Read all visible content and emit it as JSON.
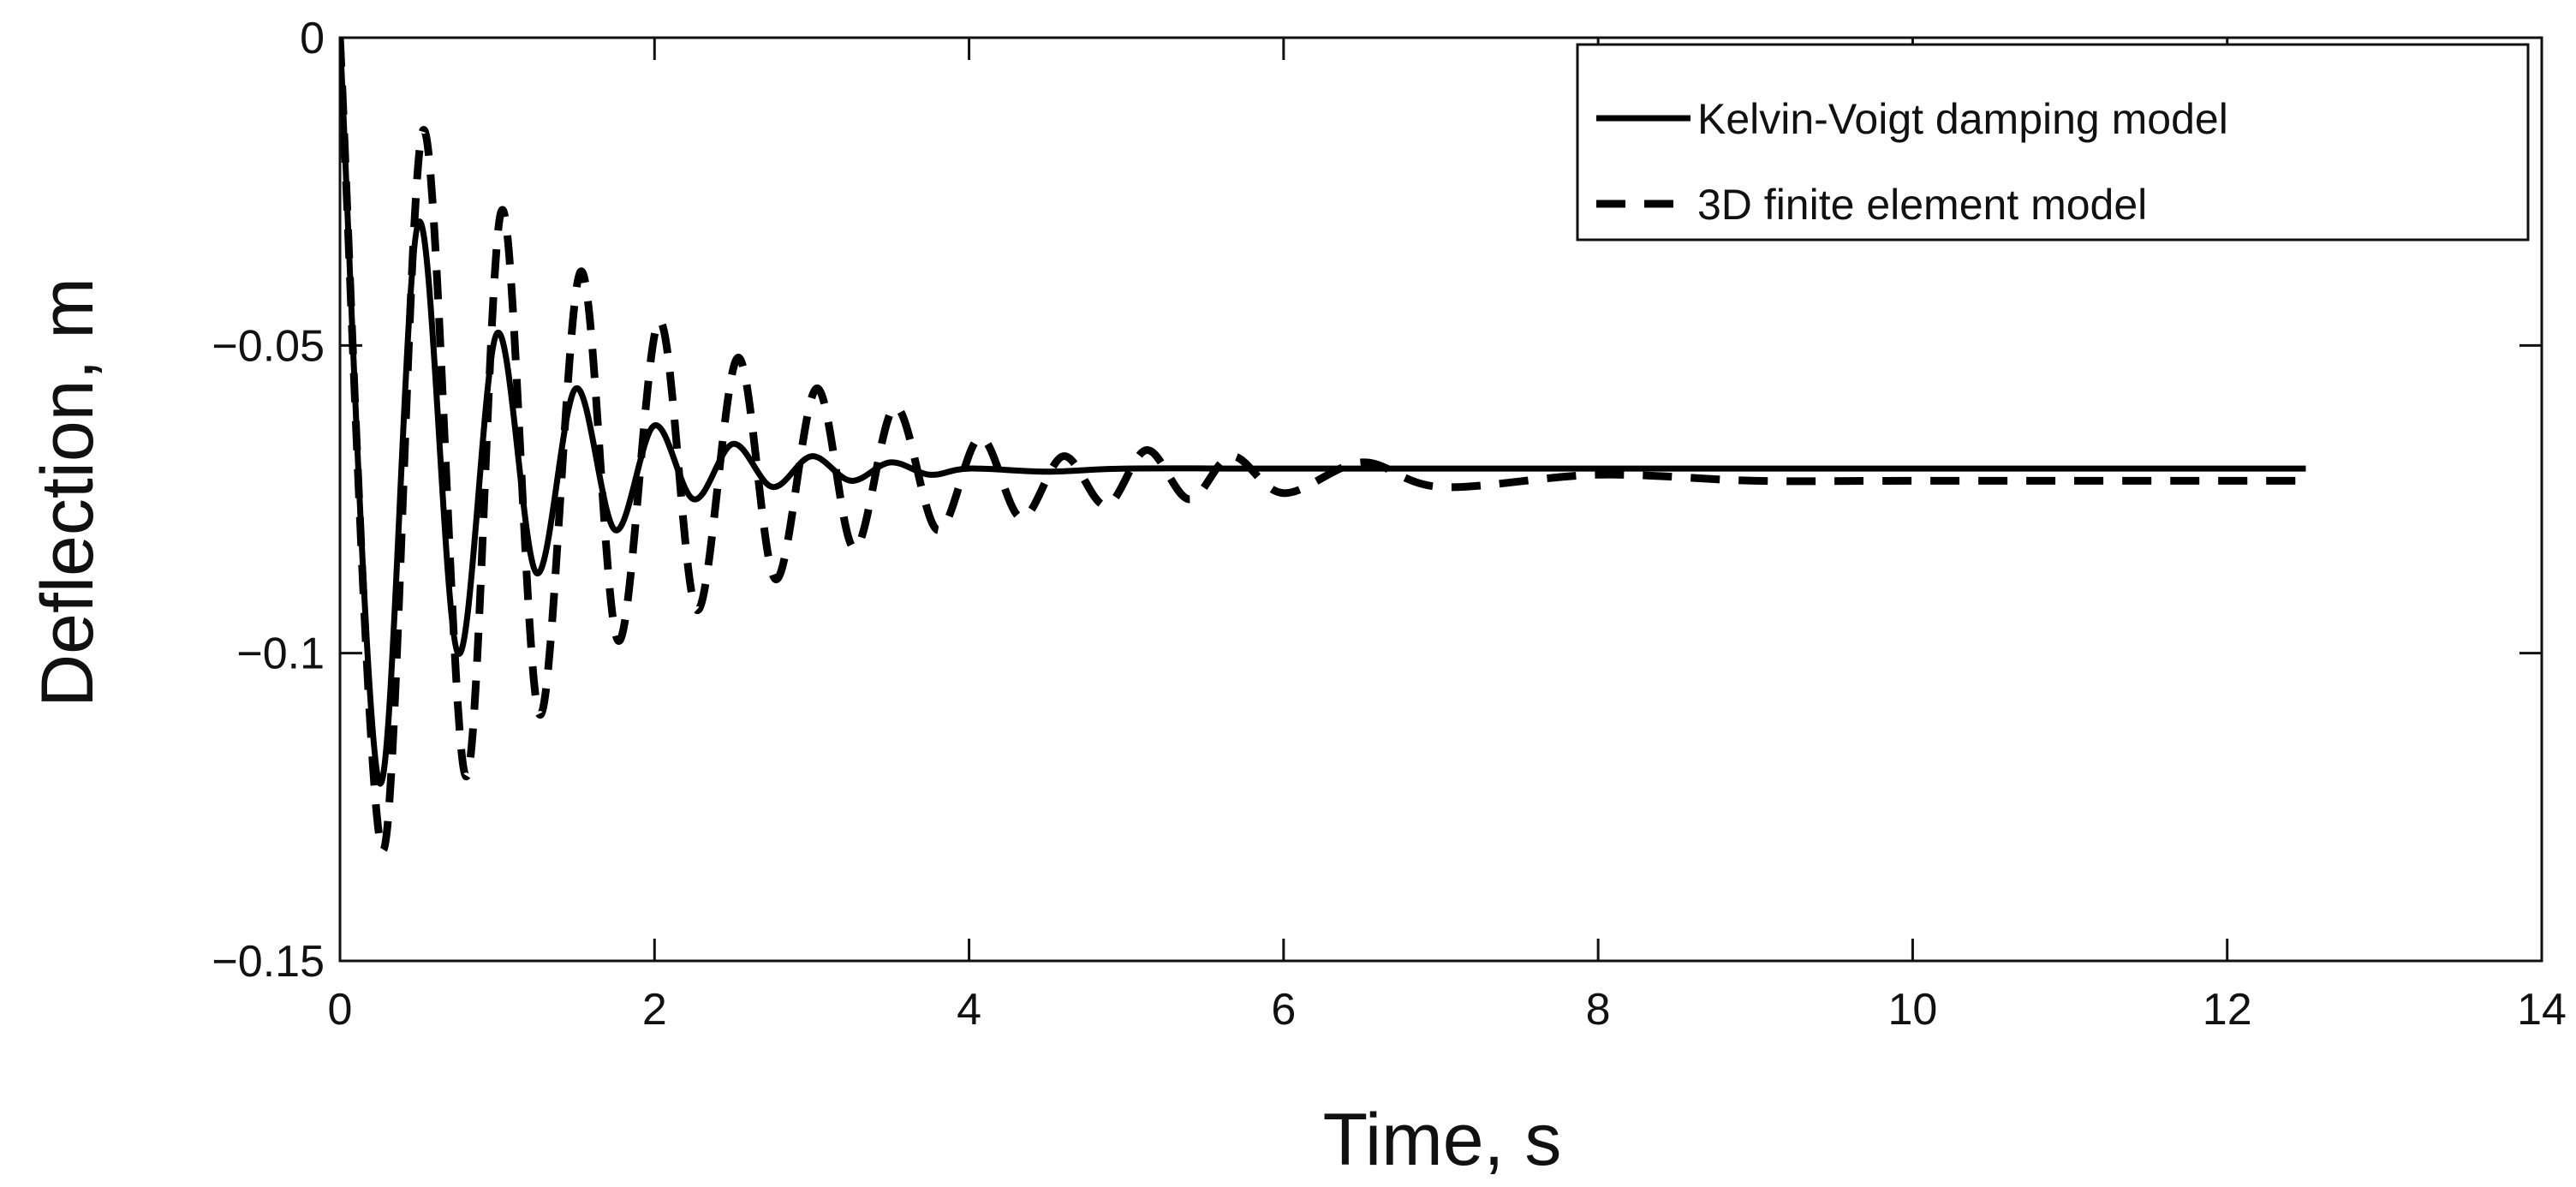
{
  "chart_data": {
    "type": "line",
    "xlabel": "Time, s",
    "ylabel": "Deflection, m",
    "xlim": [
      0,
      14
    ],
    "ylim": [
      -0.15,
      0
    ],
    "xticks": [
      0,
      2,
      4,
      6,
      8,
      10,
      12,
      14
    ],
    "yticks": [
      0,
      -0.05,
      -0.1,
      -0.15
    ],
    "xtick_labels": [
      "0",
      "2",
      "4",
      "6",
      "8",
      "10",
      "12",
      "14"
    ],
    "ytick_labels": [
      "0",
      "−0.05",
      "−0.1",
      "−0.15"
    ],
    "grid": false,
    "legend_position": "top-right",
    "series": [
      {
        "name": "Kelvin-Voigt damping model",
        "style": "solid",
        "color": "#000000",
        "x": [
          0,
          0.25,
          0.5,
          0.75,
          1.0,
          1.25,
          1.5,
          1.75,
          2.0,
          2.25,
          2.5,
          2.75,
          3.0,
          3.25,
          3.5,
          3.75,
          4.0,
          4.5,
          5.0,
          6.0,
          8.0,
          12.5
        ],
        "y": [
          0,
          -0.121,
          -0.03,
          -0.1,
          -0.048,
          -0.087,
          -0.057,
          -0.08,
          -0.063,
          -0.075,
          -0.066,
          -0.073,
          -0.068,
          -0.072,
          -0.069,
          -0.071,
          -0.07,
          -0.0705,
          -0.07,
          -0.07,
          -0.07,
          -0.07
        ]
      },
      {
        "name": "3D finite element model",
        "style": "dashed",
        "color": "#000000",
        "x": [
          0,
          0.27,
          0.53,
          0.8,
          1.03,
          1.27,
          1.53,
          1.77,
          2.03,
          2.27,
          2.53,
          2.77,
          3.03,
          3.27,
          3.53,
          3.8,
          4.07,
          4.33,
          4.6,
          4.87,
          5.13,
          5.4,
          5.67,
          6.0,
          6.5,
          7.0,
          8.0,
          9.0,
          10.0,
          12.5
        ],
        "y": [
          0,
          -0.132,
          -0.015,
          -0.12,
          -0.028,
          -0.11,
          -0.038,
          -0.098,
          -0.046,
          -0.093,
          -0.052,
          -0.088,
          -0.057,
          -0.083,
          -0.06,
          -0.08,
          -0.065,
          -0.078,
          -0.068,
          -0.076,
          -0.067,
          -0.075,
          -0.068,
          -0.074,
          -0.069,
          -0.073,
          -0.071,
          -0.072,
          -0.072,
          -0.072
        ]
      }
    ]
  }
}
